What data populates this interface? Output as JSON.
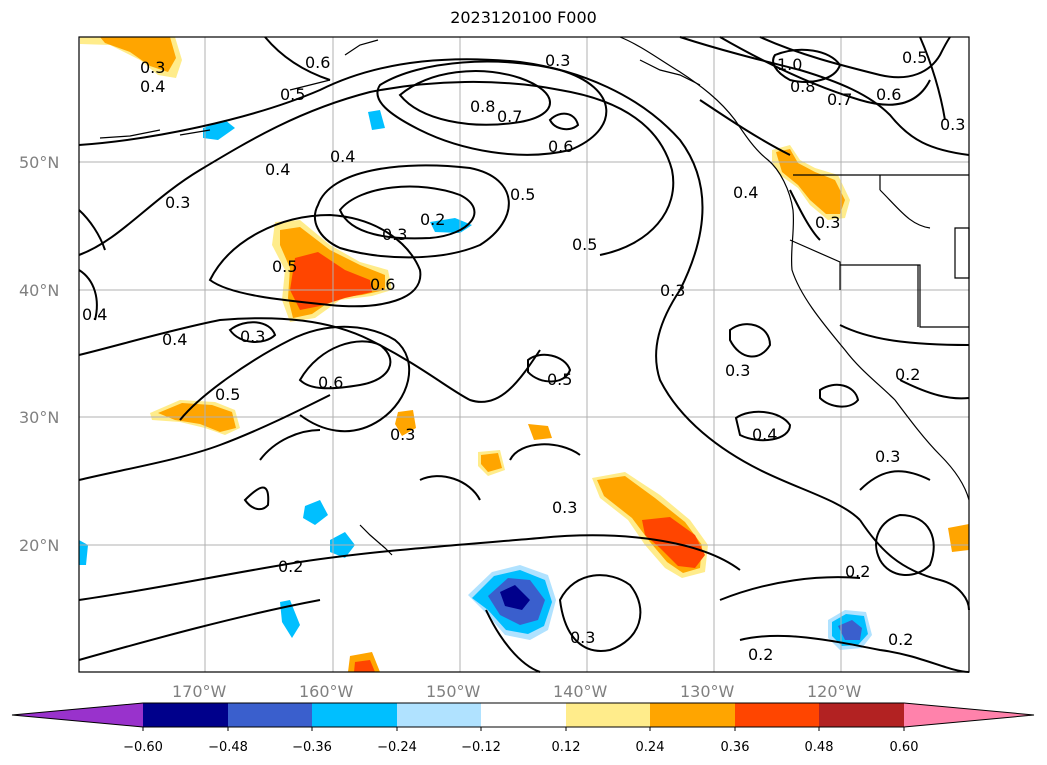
{
  "title": "2023120100 F000",
  "map": {
    "lat_labels": [
      "50°N",
      "40°N",
      "30°N",
      "20°N"
    ],
    "lon_labels": [
      "170°W",
      "160°W",
      "150°W",
      "140°W",
      "130°W",
      "120°W"
    ],
    "contour_labels": [
      "0.3",
      "0.4",
      "0.6",
      "0.5",
      "0.3",
      "0.8",
      "0.7",
      "0.6",
      "1.0",
      "0.8",
      "0.7",
      "0.6",
      "0.5",
      "0.3",
      "0.4",
      "0.4",
      "0.3",
      "0.2",
      "0.3",
      "0.5",
      "0.5",
      "0.6",
      "0.4",
      "0.3",
      "0.4",
      "0.3",
      "0.4",
      "0.3",
      "0.5",
      "0.6",
      "0.5",
      "0.3",
      "0.3",
      "0.4",
      "0.2",
      "0.3",
      "0.3",
      "0.2",
      "0.2",
      "0.3",
      "0.2",
      "0.2",
      "0.5"
    ],
    "land_color": "#000000",
    "grid": true
  },
  "colorbar": {
    "ticks": [
      "−0.60",
      "−0.48",
      "−0.36",
      "−0.24",
      "−0.12",
      "0.12",
      "0.24",
      "0.36",
      "0.48",
      "0.60"
    ],
    "colors": [
      "#9932cc",
      "#00008b",
      "#3a5fcd",
      "#00bfff",
      "#b0e2ff",
      "#ffffff",
      "#ffec8b",
      "#ffa500",
      "#ff4500",
      "#b22222",
      "#ff82ab"
    ]
  }
}
